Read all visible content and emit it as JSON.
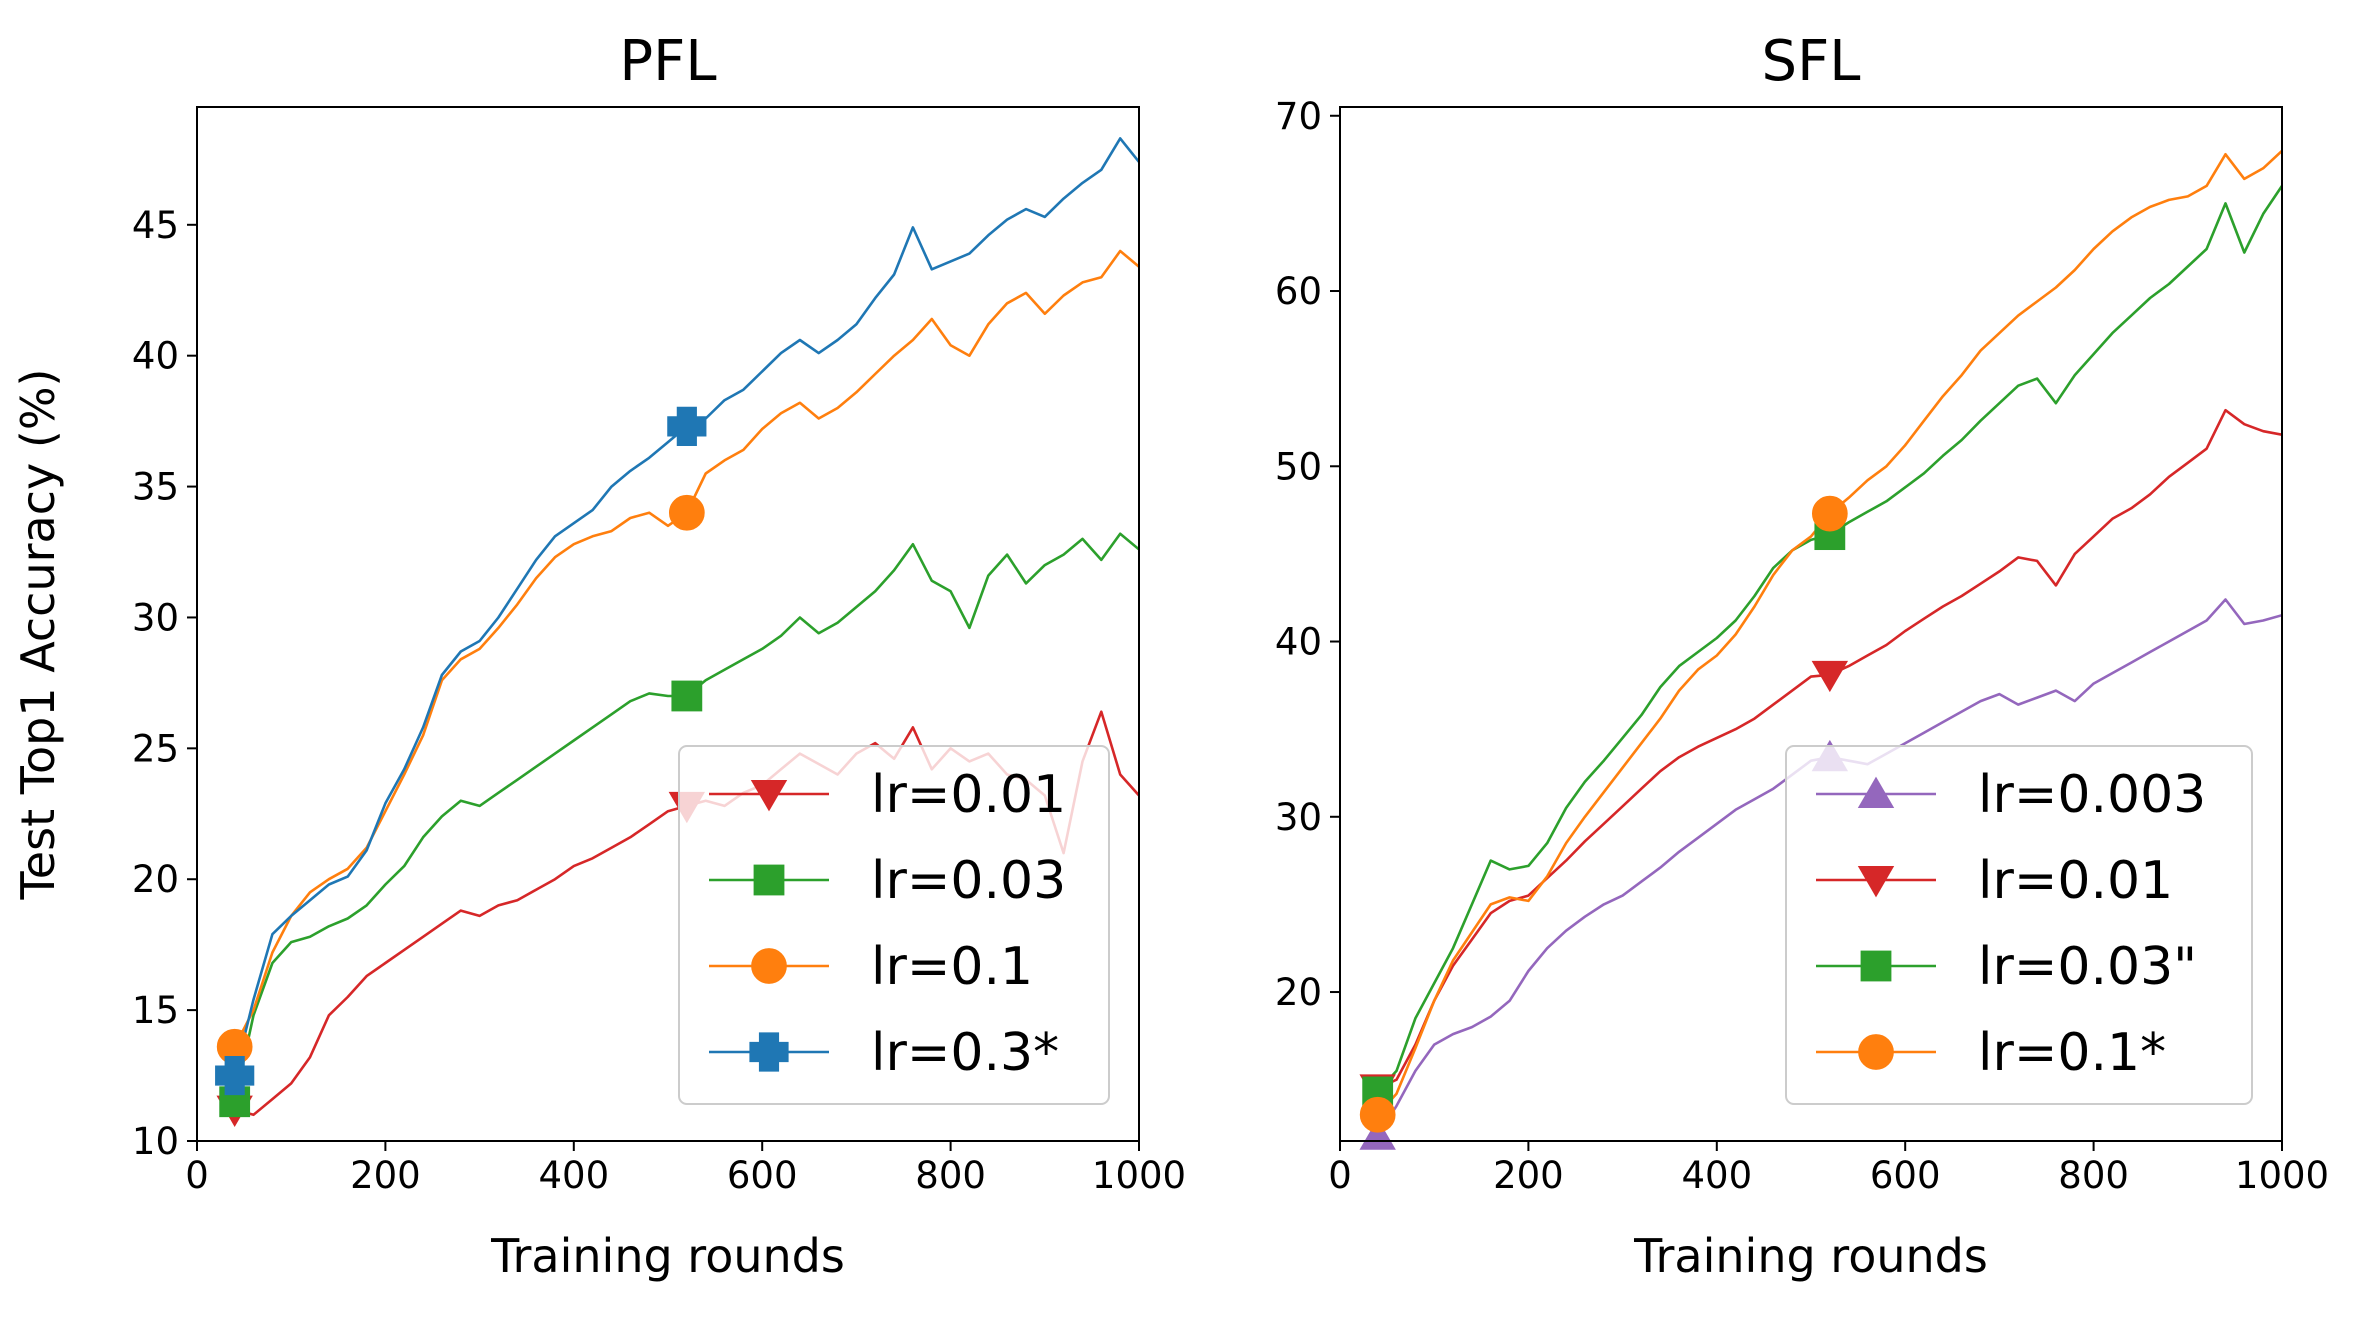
{
  "ylabel_shared": "Test Top1 Accuracy (%)",
  "chart_data": [
    {
      "type": "line",
      "title": "PFL",
      "xlabel": "Training rounds",
      "ylabel": "Test Top1 Accuracy (%)",
      "xlim": [
        0,
        1000
      ],
      "ylim": [
        10,
        49.5
      ],
      "xticks": [
        0,
        200,
        400,
        600,
        800,
        1000
      ],
      "yticks": [
        10,
        15,
        20,
        25,
        30,
        35,
        40,
        45
      ],
      "legend_position": "lower right",
      "series": [
        {
          "name": "lr=0.01",
          "color": "#d62728",
          "marker": "triangle-down",
          "x": [
            40,
            60,
            80,
            100,
            120,
            140,
            160,
            180,
            200,
            220,
            240,
            260,
            280,
            300,
            320,
            340,
            360,
            380,
            400,
            420,
            440,
            460,
            480,
            500,
            520,
            540,
            560,
            580,
            600,
            620,
            640,
            660,
            680,
            700,
            720,
            740,
            760,
            780,
            800,
            820,
            840,
            860,
            880,
            900,
            920,
            940,
            960,
            980,
            1000
          ],
          "y": [
            11.2,
            11.0,
            11.6,
            12.2,
            13.2,
            14.8,
            15.5,
            16.3,
            16.8,
            17.3,
            17.8,
            18.3,
            18.8,
            18.6,
            19.0,
            19.2,
            19.6,
            20.0,
            20.5,
            20.8,
            21.2,
            21.6,
            22.1,
            22.6,
            22.8,
            23.0,
            22.8,
            23.3,
            23.6,
            24.2,
            24.8,
            24.4,
            24.0,
            24.8,
            25.2,
            24.6,
            25.8,
            24.2,
            25.0,
            24.5,
            24.8,
            24.0,
            23.8,
            23.2,
            21.0,
            24.5,
            26.4,
            24.0,
            23.2
          ],
          "marker_x": [
            40,
            520
          ],
          "marker_y": [
            11.2,
            22.8
          ]
        },
        {
          "name": "lr=0.03",
          "color": "#2ca02c",
          "marker": "square",
          "x": [
            40,
            60,
            80,
            100,
            120,
            140,
            160,
            180,
            200,
            220,
            240,
            260,
            280,
            300,
            320,
            340,
            360,
            380,
            400,
            420,
            440,
            460,
            480,
            500,
            520,
            540,
            560,
            580,
            600,
            620,
            640,
            660,
            680,
            700,
            720,
            740,
            760,
            780,
            800,
            820,
            840,
            860,
            880,
            900,
            920,
            940,
            960,
            980,
            1000
          ],
          "y": [
            11.5,
            14.8,
            16.8,
            17.6,
            17.8,
            18.2,
            18.5,
            19.0,
            19.8,
            20.5,
            21.6,
            22.4,
            23.0,
            22.8,
            23.3,
            23.8,
            24.3,
            24.8,
            25.3,
            25.8,
            26.3,
            26.8,
            27.1,
            27.0,
            27.0,
            27.6,
            28.0,
            28.4,
            28.8,
            29.3,
            30.0,
            29.4,
            29.8,
            30.4,
            31.0,
            31.8,
            32.8,
            31.4,
            31.0,
            29.6,
            31.6,
            32.4,
            31.3,
            32.0,
            32.4,
            33.0,
            32.2,
            33.2,
            32.6
          ],
          "marker_x": [
            40,
            520
          ],
          "marker_y": [
            11.5,
            27.0
          ]
        },
        {
          "name": "lr=0.1",
          "color": "#ff7f0e",
          "marker": "circle",
          "x": [
            40,
            60,
            80,
            100,
            120,
            140,
            160,
            180,
            200,
            220,
            240,
            260,
            280,
            300,
            320,
            340,
            360,
            380,
            400,
            420,
            440,
            460,
            480,
            500,
            520,
            540,
            560,
            580,
            600,
            620,
            640,
            660,
            680,
            700,
            720,
            740,
            760,
            780,
            800,
            820,
            840,
            860,
            880,
            900,
            920,
            940,
            960,
            980,
            1000
          ],
          "y": [
            13.6,
            15.0,
            17.2,
            18.6,
            19.5,
            20.0,
            20.4,
            21.2,
            22.6,
            24.0,
            25.5,
            27.6,
            28.4,
            28.8,
            29.6,
            30.5,
            31.5,
            32.3,
            32.8,
            33.1,
            33.3,
            33.8,
            34.0,
            33.5,
            34.0,
            35.5,
            36.0,
            36.4,
            37.2,
            37.8,
            38.2,
            37.6,
            38.0,
            38.6,
            39.3,
            40.0,
            40.6,
            41.4,
            40.4,
            40.0,
            41.2,
            42.0,
            42.4,
            41.6,
            42.3,
            42.8,
            43.0,
            44.0,
            43.4
          ],
          "marker_x": [
            40,
            520
          ],
          "marker_y": [
            13.6,
            34.0
          ]
        },
        {
          "name": "lr=0.3*",
          "color": "#1f77b4",
          "marker": "plus",
          "x": [
            40,
            60,
            80,
            100,
            120,
            140,
            160,
            180,
            200,
            220,
            240,
            260,
            280,
            300,
            320,
            340,
            360,
            380,
            400,
            420,
            440,
            460,
            480,
            500,
            520,
            540,
            560,
            580,
            600,
            620,
            640,
            660,
            680,
            700,
            720,
            740,
            760,
            780,
            800,
            820,
            840,
            860,
            880,
            900,
            920,
            940,
            960,
            980,
            1000
          ],
          "y": [
            12.5,
            15.4,
            17.9,
            18.6,
            19.2,
            19.8,
            20.1,
            21.1,
            22.9,
            24.2,
            25.8,
            27.8,
            28.7,
            29.1,
            30.0,
            31.1,
            32.2,
            33.1,
            33.6,
            34.1,
            35.0,
            35.6,
            36.1,
            36.7,
            37.3,
            37.6,
            38.3,
            38.7,
            39.4,
            40.1,
            40.6,
            40.1,
            40.6,
            41.2,
            42.2,
            43.1,
            44.9,
            43.3,
            43.6,
            43.9,
            44.6,
            45.2,
            45.6,
            45.3,
            46.0,
            46.6,
            47.1,
            48.3,
            47.4
          ],
          "marker_x": [
            40,
            520
          ],
          "marker_y": [
            12.5,
            37.3
          ]
        }
      ]
    },
    {
      "type": "line",
      "title": "SFL",
      "xlabel": "Training rounds",
      "ylabel": "",
      "xlim": [
        0,
        1000
      ],
      "ylim": [
        11.5,
        70.5
      ],
      "xticks": [
        0,
        200,
        400,
        600,
        800,
        1000
      ],
      "yticks": [
        20,
        30,
        40,
        50,
        60,
        70
      ],
      "legend_position": "lower right",
      "series": [
        {
          "name": "lr=0.003",
          "color": "#9467bd",
          "marker": "triangle-up",
          "x": [
            40,
            60,
            80,
            100,
            120,
            140,
            160,
            180,
            200,
            220,
            240,
            260,
            280,
            300,
            320,
            340,
            360,
            380,
            400,
            420,
            440,
            460,
            480,
            500,
            520,
            540,
            560,
            580,
            600,
            620,
            640,
            660,
            680,
            700,
            720,
            740,
            760,
            780,
            800,
            820,
            840,
            860,
            880,
            900,
            920,
            940,
            960,
            980,
            1000
          ],
          "y": [
            11.8,
            13.5,
            15.5,
            17.0,
            17.6,
            18.0,
            18.6,
            19.5,
            21.2,
            22.5,
            23.5,
            24.3,
            25.0,
            25.5,
            26.3,
            27.1,
            28.0,
            28.8,
            29.6,
            30.4,
            31.0,
            31.6,
            32.4,
            33.2,
            33.4,
            33.2,
            33.0,
            33.6,
            34.2,
            34.8,
            35.4,
            36.0,
            36.6,
            37.0,
            36.4,
            36.8,
            37.2,
            36.6,
            37.6,
            38.2,
            38.8,
            39.4,
            40.0,
            40.6,
            41.2,
            42.4,
            41.0,
            41.2,
            41.5
          ],
          "marker_x": [
            40,
            520
          ],
          "marker_y": [
            11.8,
            33.4
          ]
        },
        {
          "name": "lr=0.01",
          "color": "#d62728",
          "marker": "triangle-down",
          "x": [
            40,
            60,
            80,
            100,
            120,
            140,
            160,
            180,
            200,
            220,
            240,
            260,
            280,
            300,
            320,
            340,
            360,
            380,
            400,
            420,
            440,
            460,
            480,
            500,
            520,
            540,
            560,
            580,
            600,
            620,
            640,
            660,
            680,
            700,
            720,
            740,
            760,
            780,
            800,
            820,
            840,
            860,
            880,
            900,
            920,
            940,
            960,
            980,
            1000
          ],
          "y": [
            14.5,
            15.0,
            17.0,
            19.5,
            21.5,
            23.0,
            24.5,
            25.2,
            25.5,
            26.5,
            27.5,
            28.6,
            29.6,
            30.6,
            31.6,
            32.6,
            33.4,
            34.0,
            34.5,
            35.0,
            35.6,
            36.4,
            37.2,
            38.0,
            38.1,
            38.6,
            39.2,
            39.8,
            40.6,
            41.3,
            42.0,
            42.6,
            43.3,
            44.0,
            44.8,
            44.6,
            43.2,
            45.0,
            46.0,
            47.0,
            47.6,
            48.4,
            49.4,
            50.2,
            51.0,
            53.2,
            52.4,
            52.0,
            51.8
          ],
          "marker_x": [
            40,
            520
          ],
          "marker_y": [
            14.5,
            38.1
          ]
        },
        {
          "name": "lr=0.03\"",
          "color": "#2ca02c",
          "marker": "square",
          "x": [
            40,
            60,
            80,
            100,
            120,
            140,
            160,
            180,
            200,
            220,
            240,
            260,
            280,
            300,
            320,
            340,
            360,
            380,
            400,
            420,
            440,
            460,
            480,
            500,
            520,
            540,
            560,
            580,
            600,
            620,
            640,
            660,
            680,
            700,
            720,
            740,
            760,
            780,
            800,
            820,
            840,
            860,
            880,
            900,
            920,
            940,
            960,
            980,
            1000
          ],
          "y": [
            14.3,
            15.5,
            18.5,
            20.5,
            22.5,
            25.0,
            27.5,
            27.0,
            27.2,
            28.5,
            30.5,
            32.0,
            33.2,
            34.5,
            35.8,
            37.4,
            38.6,
            39.4,
            40.2,
            41.2,
            42.6,
            44.2,
            45.2,
            45.8,
            46.1,
            46.8,
            47.4,
            48.0,
            48.8,
            49.6,
            50.6,
            51.5,
            52.6,
            53.6,
            54.6,
            55.0,
            53.6,
            55.2,
            56.4,
            57.6,
            58.6,
            59.6,
            60.4,
            61.4,
            62.4,
            65.0,
            62.2,
            64.4,
            66.0
          ],
          "marker_x": [
            40,
            520
          ],
          "marker_y": [
            14.3,
            46.1
          ]
        },
        {
          "name": "lr=0.1*",
          "color": "#ff7f0e",
          "marker": "circle",
          "x": [
            40,
            60,
            80,
            100,
            120,
            140,
            160,
            180,
            200,
            220,
            240,
            260,
            280,
            300,
            320,
            340,
            360,
            380,
            400,
            420,
            440,
            460,
            480,
            500,
            520,
            540,
            560,
            580,
            600,
            620,
            640,
            660,
            680,
            700,
            720,
            740,
            760,
            780,
            800,
            820,
            840,
            860,
            880,
            900,
            920,
            940,
            960,
            980,
            1000
          ],
          "y": [
            13.0,
            14.2,
            16.8,
            19.5,
            21.8,
            23.4,
            25.0,
            25.4,
            25.2,
            26.6,
            28.5,
            30.0,
            31.4,
            32.8,
            34.2,
            35.6,
            37.2,
            38.4,
            39.2,
            40.4,
            42.0,
            43.8,
            45.2,
            46.0,
            47.3,
            48.2,
            49.2,
            50.0,
            51.2,
            52.6,
            54.0,
            55.2,
            56.6,
            57.6,
            58.6,
            59.4,
            60.2,
            61.2,
            62.4,
            63.4,
            64.2,
            64.8,
            65.2,
            65.4,
            66.0,
            67.8,
            66.4,
            67.0,
            68.0
          ],
          "marker_x": [
            40,
            520
          ],
          "marker_y": [
            13.0,
            47.3
          ]
        }
      ]
    }
  ]
}
